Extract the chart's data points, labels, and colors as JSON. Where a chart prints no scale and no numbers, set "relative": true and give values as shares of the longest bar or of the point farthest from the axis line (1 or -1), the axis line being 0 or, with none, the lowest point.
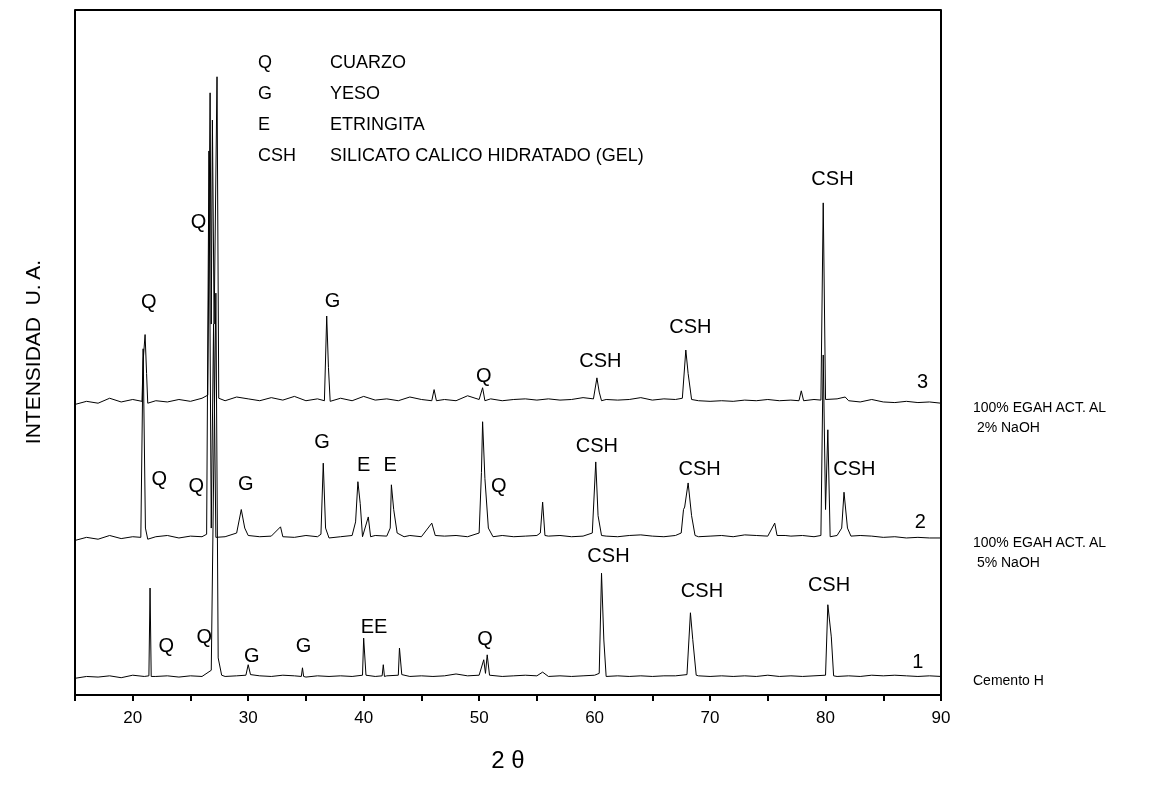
{
  "chart_data": {
    "type": "line",
    "relative": true,
    "xlabel": "2 θ",
    "ylabel": "INTENSIDAD  U. A.",
    "xlim": [
      15,
      90
    ],
    "xticks": [
      {
        "value": 15,
        "label": null
      },
      20,
      {
        "value": 25,
        "label": null
      },
      30,
      {
        "value": 35,
        "label": null
      },
      40,
      {
        "value": 45,
        "label": null
      },
      50,
      {
        "value": 55,
        "label": null
      },
      60,
      {
        "value": 65,
        "label": null
      },
      70,
      {
        "value": 75,
        "label": null
      },
      80,
      {
        "value": 85,
        "label": null
      },
      90
    ],
    "grid": false,
    "legend": false,
    "marker": "none",
    "line_style": "solid",
    "series": [
      {
        "name": "Cemento H",
        "color": "#000000",
        "x": [
          15,
          16,
          17,
          18,
          19,
          20,
          21,
          21.4,
          21.5,
          21.6,
          22,
          23,
          24,
          25,
          26,
          26.8,
          27.2,
          27.4,
          27.7,
          28,
          29,
          29.8,
          30,
          30.2,
          31,
          32,
          33,
          34,
          34.6,
          34.7,
          34.8,
          35,
          36,
          37,
          38,
          39,
          39.9,
          40,
          40.2,
          41,
          41.6,
          41.7,
          41.8,
          42,
          43,
          43.1,
          43.3,
          44,
          45,
          46,
          47,
          48,
          49,
          50,
          50.4,
          50.55,
          50.7,
          50.9,
          52,
          53,
          54,
          55,
          55.5,
          56,
          57,
          58,
          59,
          60,
          60.4,
          60.6,
          60.8,
          61,
          62,
          63,
          64,
          65,
          66,
          67,
          68,
          68.3,
          68.5,
          68.8,
          69,
          70,
          71,
          72,
          73,
          74,
          75,
          76,
          77,
          78,
          79,
          80,
          80.2,
          80.5,
          80.7,
          81,
          82,
          83,
          84,
          85,
          86,
          87,
          88,
          89,
          90
        ],
        "values": [
          0.027,
          0.03,
          0.029,
          0.031,
          0.028,
          0.032,
          0.03,
          0.031,
          0.173,
          0.03,
          0.03,
          0.031,
          0.029,
          0.031,
          0.03,
          0.04,
          0.65,
          0.06,
          0.032,
          0.03,
          0.031,
          0.032,
          0.049,
          0.033,
          0.031,
          0.03,
          0.032,
          0.031,
          0.03,
          0.044,
          0.03,
          0.029,
          0.031,
          0.03,
          0.031,
          0.03,
          0.032,
          0.092,
          0.032,
          0.03,
          0.031,
          0.049,
          0.03,
          0.031,
          0.032,
          0.076,
          0.033,
          0.03,
          0.031,
          0.03,
          0.031,
          0.034,
          0.031,
          0.032,
          0.057,
          0.035,
          0.065,
          0.032,
          0.03,
          0.031,
          0.032,
          0.031,
          0.037,
          0.03,
          0.031,
          0.03,
          0.031,
          0.032,
          0.035,
          0.197,
          0.089,
          0.03,
          0.031,
          0.03,
          0.031,
          0.03,
          0.031,
          0.031,
          0.033,
          0.133,
          0.09,
          0.032,
          0.031,
          0.03,
          0.031,
          0.03,
          0.031,
          0.03,
          0.032,
          0.03,
          0.031,
          0.03,
          0.031,
          0.032,
          0.146,
          0.094,
          0.031,
          0.03,
          0.031,
          0.03,
          0.032,
          0.031,
          0.032,
          0.031,
          0.03,
          0.031,
          0.03
        ]
      },
      {
        "name": "100% EGAH ACT. AL 5% NaOH",
        "color": "#000000",
        "x": [
          15,
          16,
          17,
          18,
          19,
          20,
          20.7,
          20.9,
          21.1,
          21.3,
          22,
          23,
          24,
          25,
          26,
          26.4,
          26.6,
          26.8,
          27,
          27.2,
          28,
          29,
          29.4,
          29.7,
          30,
          31,
          32,
          32.8,
          33,
          34,
          35,
          36,
          36.3,
          36.5,
          36.7,
          37,
          38,
          39,
          39.3,
          39.5,
          39.7,
          39.9,
          40.4,
          40.6,
          41,
          42,
          42.3,
          42.4,
          42.6,
          42.9,
          43.5,
          44,
          45,
          45.9,
          46.2,
          47,
          48,
          49,
          50,
          50.2,
          50.3,
          50.5,
          50.8,
          51.2,
          52,
          53,
          54,
          55,
          55.3,
          55.5,
          55.7,
          56,
          57,
          58,
          59,
          59.8,
          60.1,
          60.3,
          60.6,
          61,
          62,
          63,
          64,
          65,
          66,
          67,
          67.5,
          67.7,
          67.8,
          68.1,
          68.4,
          68.7,
          69,
          70,
          71,
          72,
          73,
          74,
          75,
          75.6,
          75.8,
          76.5,
          77,
          78,
          79,
          79.6,
          79.8,
          80,
          80.2,
          80.4,
          81,
          81.4,
          81.6,
          81.9,
          82.2,
          83,
          84,
          85,
          86,
          87,
          88,
          89,
          90
        ],
        "values": [
          0.25,
          0.255,
          0.252,
          0.258,
          0.253,
          0.256,
          0.255,
          0.56,
          0.27,
          0.252,
          0.256,
          0.258,
          0.254,
          0.257,
          0.256,
          0.26,
          0.88,
          0.27,
          0.6,
          0.255,
          0.256,
          0.262,
          0.3,
          0.27,
          0.258,
          0.256,
          0.257,
          0.272,
          0.256,
          0.255,
          0.258,
          0.256,
          0.26,
          0.375,
          0.27,
          0.254,
          0.256,
          0.258,
          0.28,
          0.345,
          0.31,
          0.256,
          0.288,
          0.256,
          0.258,
          0.257,
          0.27,
          0.34,
          0.3,
          0.262,
          0.256,
          0.258,
          0.256,
          0.278,
          0.258,
          0.257,
          0.258,
          0.256,
          0.262,
          0.36,
          0.442,
          0.35,
          0.27,
          0.256,
          0.258,
          0.256,
          0.257,
          0.258,
          0.262,
          0.312,
          0.258,
          0.257,
          0.258,
          0.256,
          0.257,
          0.262,
          0.377,
          0.29,
          0.258,
          0.257,
          0.256,
          0.258,
          0.259,
          0.257,
          0.256,
          0.258,
          0.262,
          0.3,
          0.304,
          0.343,
          0.29,
          0.258,
          0.256,
          0.257,
          0.258,
          0.256,
          0.259,
          0.258,
          0.257,
          0.278,
          0.258,
          0.258,
          0.257,
          0.258,
          0.256,
          0.258,
          0.55,
          0.3,
          0.429,
          0.256,
          0.258,
          0.27,
          0.328,
          0.27,
          0.257,
          0.258,
          0.257,
          0.255,
          0.256,
          0.254,
          0.255,
          0.254,
          0.254
        ]
      },
      {
        "name": "100% EGAH ACT. AL 2% NaOH",
        "color": "#000000",
        "x": [
          15,
          16,
          17,
          18,
          19,
          20,
          20.8,
          20.9,
          21.07,
          21.2,
          21.3,
          22,
          23,
          24,
          25,
          26,
          26.5,
          26.7,
          26.8,
          26.9,
          27.05,
          27.3,
          27.45,
          28,
          29,
          30,
          31,
          32,
          33,
          34,
          35,
          36,
          36.6,
          36.8,
          36.95,
          37.1,
          38,
          39,
          40,
          41,
          42,
          43,
          44,
          45,
          45.9,
          46.1,
          46.3,
          47,
          48,
          49,
          50,
          50.3,
          50.5,
          51,
          52,
          53,
          54,
          55,
          56,
          57,
          58,
          59,
          59.9,
          60.2,
          60.4,
          60.6,
          61,
          62,
          63,
          64,
          65,
          66,
          67,
          67.6,
          67.9,
          68.1,
          68.4,
          69,
          70,
          71,
          72,
          73,
          74,
          75,
          76,
          77,
          77.7,
          77.9,
          78.1,
          79,
          79.6,
          79.8,
          80,
          81,
          81.7,
          82,
          83,
          84,
          85,
          86,
          87,
          88,
          89,
          90
        ],
        "values": [
          0.47,
          0.475,
          0.472,
          0.48,
          0.474,
          0.478,
          0.475,
          0.54,
          0.583,
          0.52,
          0.472,
          0.476,
          0.474,
          0.478,
          0.475,
          0.48,
          0.485,
          0.974,
          0.6,
          0.93,
          0.6,
          1.0,
          0.48,
          0.476,
          0.482,
          0.479,
          0.476,
          0.481,
          0.477,
          0.483,
          0.476,
          0.479,
          0.476,
          0.613,
          0.53,
          0.475,
          0.48,
          0.476,
          0.483,
          0.477,
          0.479,
          0.476,
          0.482,
          0.478,
          0.476,
          0.494,
          0.476,
          0.478,
          0.476,
          0.484,
          0.478,
          0.497,
          0.476,
          0.479,
          0.476,
          0.478,
          0.479,
          0.477,
          0.479,
          0.477,
          0.478,
          0.481,
          0.479,
          0.513,
          0.49,
          0.476,
          0.478,
          0.477,
          0.478,
          0.481,
          0.477,
          0.479,
          0.478,
          0.48,
          0.558,
          0.52,
          0.478,
          0.476,
          0.475,
          0.476,
          0.475,
          0.477,
          0.476,
          0.478,
          0.476,
          0.477,
          0.476,
          0.492,
          0.476,
          0.478,
          0.477,
          0.796,
          0.478,
          0.479,
          0.482,
          0.476,
          0.474,
          0.478,
          0.474,
          0.473,
          0.475,
          0.473,
          0.474,
          0.472
        ]
      }
    ],
    "annotations": [
      "Q CUARZO",
      "G YESO",
      "E ETRINGITA",
      "CSH SILICATO CALICO HIDRATADO (GEL)",
      "Q",
      "Q",
      "G",
      "Q",
      "CSH",
      "CSH",
      "CSH",
      "3",
      "Q",
      "Q",
      "G",
      "G",
      "E",
      "E",
      "Q",
      "CSH",
      "CSH",
      "CSH",
      "2",
      "Q",
      "Q",
      "G",
      "G",
      "EE",
      "Q",
      "CSH",
      "CSH",
      "CSH",
      "1"
    ]
  }
}
